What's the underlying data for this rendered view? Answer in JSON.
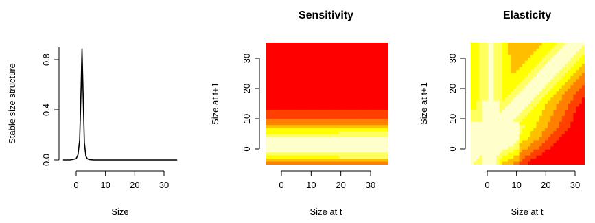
{
  "chart_data": [
    {
      "type": "line",
      "title": "",
      "xlabel": "Size",
      "ylabel": "Stable size structure",
      "xlim": [
        -6,
        36
      ],
      "ylim": [
        -0.02,
        0.92
      ],
      "xticks": [
        "0",
        "10",
        "20",
        "30"
      ],
      "yticks": [
        "0.0",
        "0.4",
        "0.8"
      ],
      "series": [
        {
          "x": [
            -4.5,
            -2.0,
            0.0,
            0.6,
            1.2,
            1.7,
            2.0,
            2.3,
            2.8,
            3.3,
            3.8,
            4.5,
            6.0,
            10.0,
            20.0,
            30.0,
            34.5
          ],
          "y": [
            0.0,
            0.0,
            0.01,
            0.04,
            0.16,
            0.6,
            0.89,
            0.6,
            0.14,
            0.03,
            0.01,
            0.003,
            0.0,
            0.0,
            0.0,
            0.0,
            0.0
          ]
        }
      ],
      "grid": false
    },
    {
      "type": "heatmap",
      "title": "Sensitivity",
      "xlabel": "Size at t",
      "ylabel": "Size at t+1",
      "xlim": [
        -5,
        35
      ],
      "ylim": [
        -5,
        35
      ],
      "xticks": [
        "0",
        "10",
        "20",
        "30"
      ],
      "yticks": [
        "0",
        "10",
        "20",
        "30"
      ],
      "palette": [
        "#ff0000",
        "#ff4000",
        "#ff8000",
        "#ffbf00",
        "#ffff00",
        "#ffff60",
        "#ffffcc"
      ],
      "description_values": "low (red) to high (pale yellow)"
    },
    {
      "type": "heatmap",
      "title": "Elasticity",
      "xlabel": "Size at t",
      "ylabel": "Size at t+1",
      "xlim": [
        -5,
        35
      ],
      "ylim": [
        -5,
        35
      ],
      "xticks": [
        "0",
        "10",
        "20",
        "30"
      ],
      "yticks": [
        "0",
        "10",
        "20",
        "30"
      ],
      "palette": [
        "#ff0000",
        "#ff4000",
        "#ff8000",
        "#ffbf00",
        "#ffff00",
        "#ffff60",
        "#ffffcc"
      ]
    }
  ]
}
